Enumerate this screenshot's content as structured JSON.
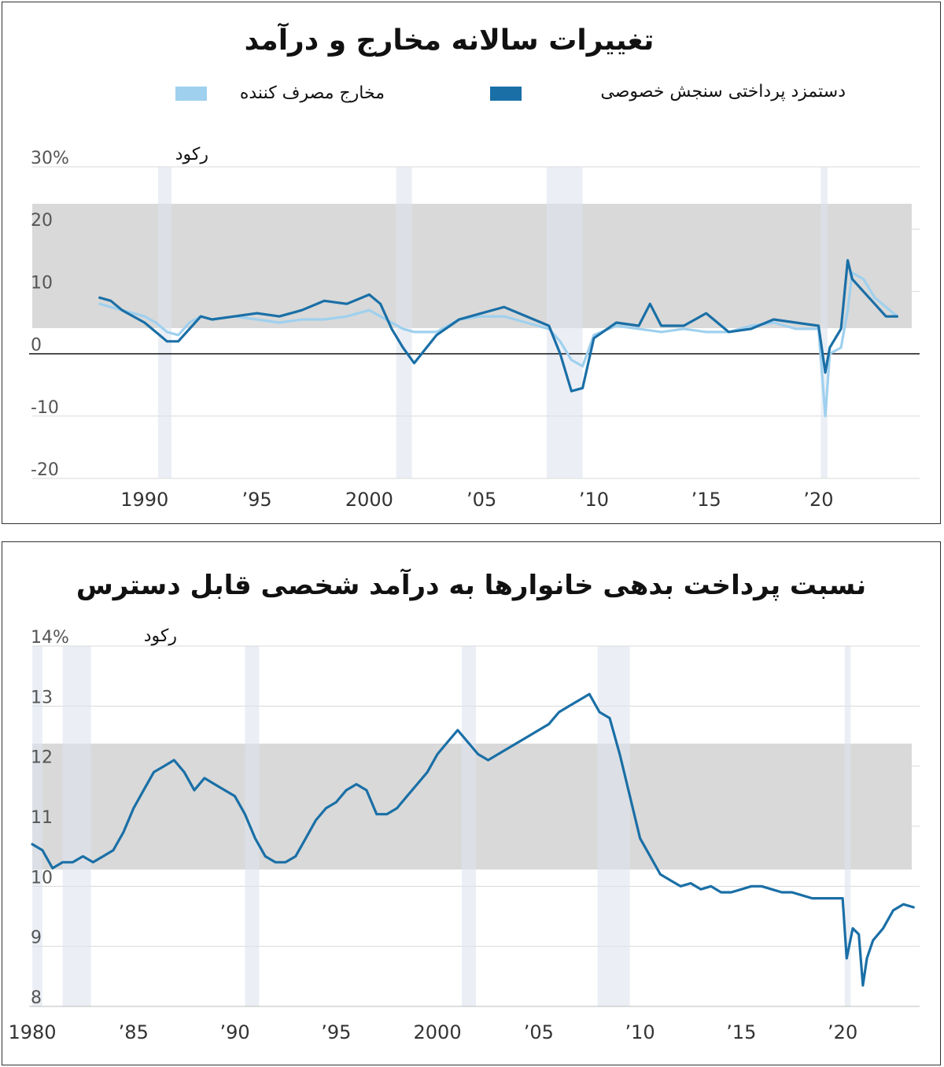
{
  "chart_data": [
    {
      "type": "line",
      "title": "تغییرات سالانه مخارج و درآمد",
      "legend": [
        {
          "name": "مخارج مصرف کننده",
          "color": "#9fd0ee"
        },
        {
          "name": "دستمزد پرداختی سنجش خصوصی",
          "color": "#1a6fa6"
        }
      ],
      "recession_label": "رکود",
      "recessions": [
        [
          1990.6,
          1991.2
        ],
        [
          2001.2,
          2001.9
        ],
        [
          2007.9,
          2009.5
        ],
        [
          2020.1,
          2020.4
        ]
      ],
      "y_ticks": [
        "30%",
        "20",
        "10",
        "0",
        "-10",
        "-20"
      ],
      "y_tick_values": [
        30,
        20,
        10,
        0,
        -10,
        -20
      ],
      "x_ticks": [
        "1990",
        "’95",
        "2000",
        "’05",
        "’10",
        "’15",
        "’20"
      ],
      "x_tick_values": [
        1990,
        1995,
        2000,
        2005,
        2010,
        2015,
        2020
      ],
      "ylim": [
        -20,
        30
      ],
      "xlim": [
        1985,
        2024.5
      ],
      "series": [
        {
          "name": "مخارج مصرف کننده",
          "color": "#9fd0ee",
          "x": [
            1988,
            1988.5,
            1989,
            1989.5,
            1990,
            1990.5,
            1991,
            1991.5,
            1992,
            1992.5,
            1993,
            1994,
            1995,
            1996,
            1997,
            1998,
            1999,
            2000,
            2000.5,
            2001,
            2001.5,
            2002,
            2003,
            2004,
            2005,
            2006,
            2007,
            2008,
            2008.5,
            2009,
            2009.5,
            2010,
            2011,
            2012,
            2013,
            2014,
            2015,
            2016,
            2017,
            2018,
            2019,
            2020,
            2020.3,
            2020.5,
            2021,
            2021.3,
            2021.5,
            2022,
            2022.5,
            2023,
            2023.5
          ],
          "y": [
            8,
            7.5,
            7,
            6.5,
            6,
            5,
            3.5,
            3,
            5,
            6,
            5.5,
            6,
            5.5,
            5,
            5.5,
            5.5,
            6,
            7,
            6,
            5,
            4,
            3.5,
            3.5,
            5.5,
            6,
            6,
            5,
            4,
            2,
            -1,
            -2,
            3,
            4.5,
            4,
            3.5,
            4,
            3.5,
            3.5,
            4.5,
            5,
            4,
            4,
            -10,
            0,
            1,
            7,
            13,
            12,
            9,
            7.5,
            6
          ]
        },
        {
          "name": "دستمزد پرداختی سنجش خصوصی",
          "color": "#1a6fa6",
          "x": [
            1988,
            1988.5,
            1989,
            1989.5,
            1990,
            1990.5,
            1991,
            1991.5,
            1992,
            1992.5,
            1993,
            1994,
            1995,
            1996,
            1997,
            1998,
            1999,
            2000,
            2000.5,
            2001,
            2001.5,
            2002,
            2003,
            2004,
            2005,
            2006,
            2007,
            2008,
            2008.5,
            2009,
            2009.5,
            2010,
            2011,
            2012,
            2012.5,
            2013,
            2014,
            2015,
            2016,
            2017,
            2018,
            2019,
            2020,
            2020.3,
            2020.5,
            2021,
            2021.3,
            2021.5,
            2022,
            2022.5,
            2023,
            2023.5
          ],
          "y": [
            9,
            8.5,
            7,
            6,
            5,
            3.5,
            2,
            2,
            4,
            6,
            5.5,
            6,
            6.5,
            6,
            7,
            8.5,
            8,
            9.5,
            8,
            4,
            1,
            -1.5,
            3,
            5.5,
            6.5,
            7.5,
            6,
            4.5,
            0,
            -6,
            -5.5,
            2.5,
            5,
            4.5,
            8,
            4.5,
            4.5,
            6.5,
            3.5,
            4,
            5.5,
            5,
            4.5,
            -3,
            1,
            4,
            15,
            12,
            10,
            8,
            6,
            6
          ]
        }
      ]
    },
    {
      "type": "line",
      "title": "نسبت پرداخت بدهی خانوارها به درآمد شخصی قابل دسترس",
      "recession_label": "رکود",
      "recessions": [
        [
          1980,
          1980.5
        ],
        [
          1981.5,
          1982.9
        ],
        [
          1990.5,
          1991.2
        ],
        [
          2001.2,
          2001.9
        ],
        [
          2007.9,
          2009.5
        ],
        [
          2020.1,
          2020.4
        ]
      ],
      "y_ticks": [
        "14%",
        "13",
        "12",
        "11",
        "10",
        "9",
        "8"
      ],
      "y_tick_values": [
        14,
        13,
        12,
        11,
        10,
        9,
        8
      ],
      "x_ticks": [
        "1980",
        "’85",
        "’90",
        "’95",
        "2000",
        "’05",
        "’10",
        "’15",
        "’20"
      ],
      "x_tick_values": [
        1980,
        1985,
        1990,
        1995,
        2000,
        2005,
        2010,
        2015,
        2020
      ],
      "ylim": [
        8,
        14
      ],
      "xlim": [
        1980,
        2023.8
      ],
      "series": [
        {
          "name": "",
          "color": "#1a6fa6",
          "x": [
            1980,
            1980.5,
            1981,
            1981.5,
            1982,
            1982.5,
            1983,
            1983.5,
            1984,
            1984.5,
            1985,
            1985.5,
            1986,
            1986.5,
            1987,
            1987.5,
            1988,
            1988.5,
            1989,
            1989.5,
            1990,
            1990.5,
            1991,
            1991.5,
            1992,
            1992.5,
            1993,
            1993.5,
            1994,
            1994.5,
            1995,
            1995.5,
            1996,
            1996.5,
            1997,
            1997.5,
            1998,
            1998.5,
            1999,
            1999.5,
            2000,
            2000.5,
            2001,
            2001.5,
            2002,
            2002.5,
            2003,
            2003.5,
            2004,
            2004.5,
            2005,
            2005.5,
            2006,
            2006.5,
            2007,
            2007.5,
            2008,
            2008.5,
            2009,
            2009.5,
            2010,
            2010.5,
            2011,
            2011.5,
            2012,
            2012.5,
            2013,
            2013.5,
            2014,
            2014.5,
            2015,
            2015.5,
            2016,
            2016.5,
            2017,
            2017.5,
            2018,
            2018.5,
            2019,
            2019.5,
            2020,
            2020.2,
            2020.5,
            2020.8,
            2021,
            2021.2,
            2021.5,
            2022,
            2022.5,
            2023,
            2023.5
          ],
          "y": [
            10.7,
            10.6,
            10.3,
            10.4,
            10.4,
            10.5,
            10.4,
            10.5,
            10.6,
            10.9,
            11.3,
            11.6,
            11.9,
            12.0,
            12.1,
            11.9,
            11.6,
            11.8,
            11.7,
            11.6,
            11.5,
            11.2,
            10.8,
            10.5,
            10.4,
            10.4,
            10.5,
            10.8,
            11.1,
            11.3,
            11.4,
            11.6,
            11.7,
            11.6,
            11.2,
            11.2,
            11.3,
            11.5,
            11.7,
            11.9,
            12.2,
            12.4,
            12.6,
            12.4,
            12.2,
            12.1,
            12.2,
            12.3,
            12.4,
            12.5,
            12.6,
            12.7,
            12.9,
            13.0,
            13.1,
            13.2,
            12.9,
            12.8,
            12.2,
            11.5,
            10.8,
            10.5,
            10.2,
            10.1,
            10.0,
            10.05,
            9.95,
            10.0,
            9.9,
            9.9,
            9.95,
            10.0,
            10.0,
            9.95,
            9.9,
            9.9,
            9.85,
            9.8,
            9.8,
            9.8,
            9.8,
            8.8,
            9.3,
            9.2,
            8.35,
            8.8,
            9.1,
            9.3,
            9.6,
            9.7,
            9.65
          ]
        }
      ]
    }
  ]
}
